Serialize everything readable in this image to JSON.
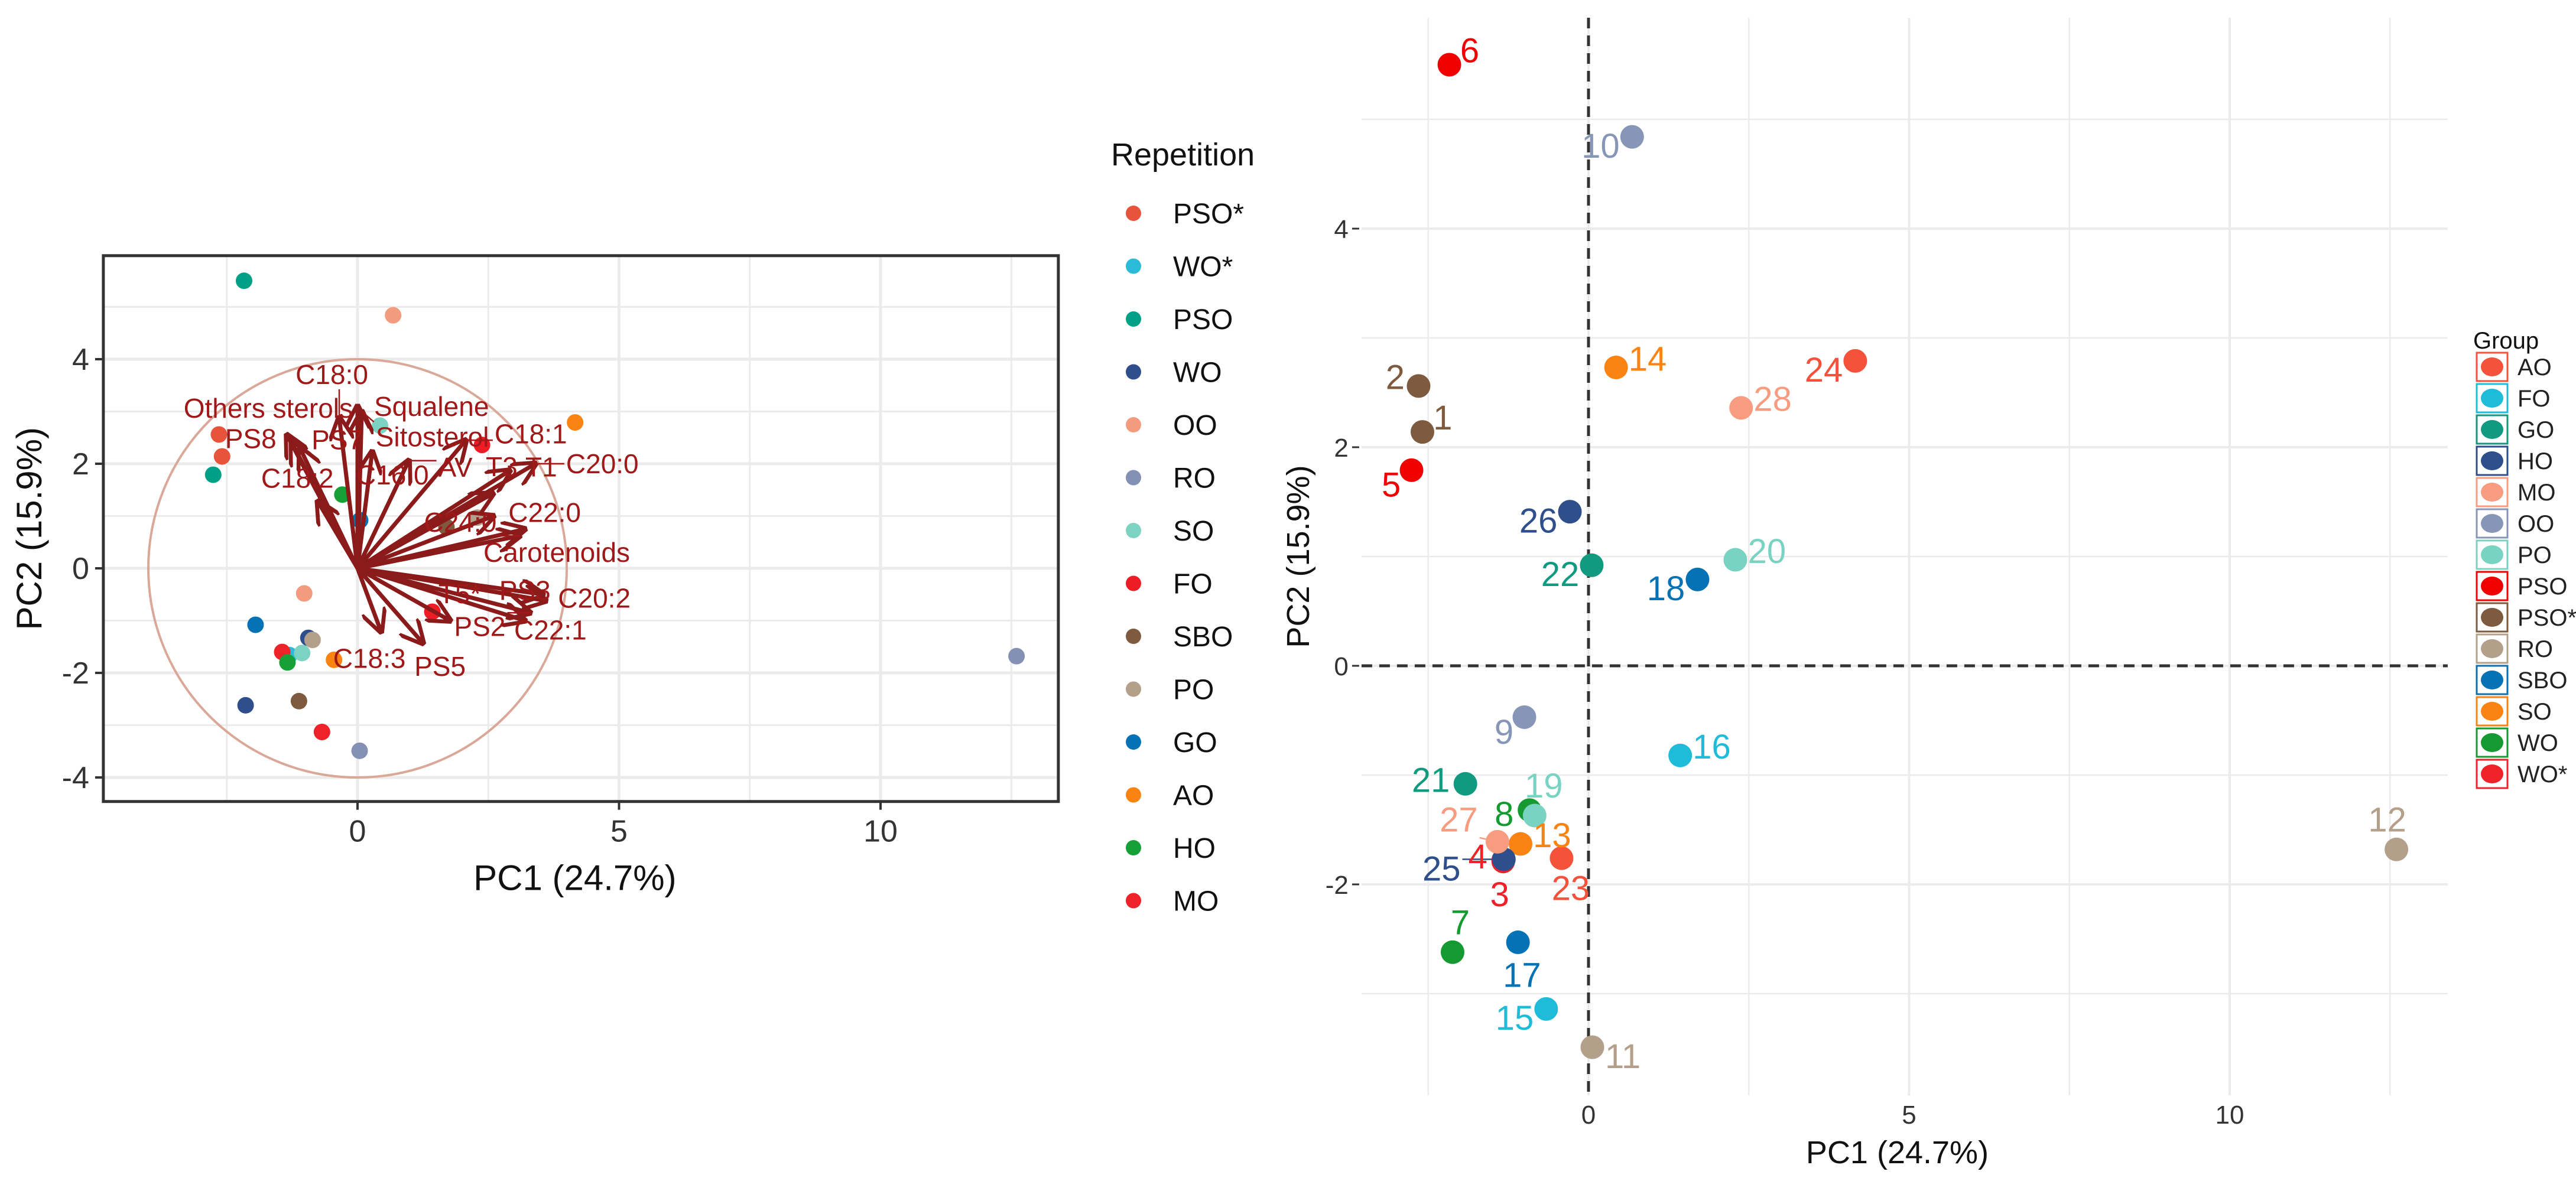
{
  "chart_data": [
    {
      "type": "scatter",
      "subtype": "biplot",
      "xlabel": "PC1 (24.7%)",
      "ylabel": "PC2 (15.9%)",
      "xlim": [
        -4.86,
        13.4
      ],
      "ylim": [
        -4.46,
        5.98
      ],
      "xticks": [
        0,
        5,
        10
      ],
      "yticks": [
        -4,
        -2,
        0,
        2,
        4
      ],
      "grid": true,
      "correlation_circle_radius": 4,
      "legend": {
        "title": "Repetition",
        "position": "right",
        "items": [
          {
            "label": "PSO*",
            "color": "#E8533B"
          },
          {
            "label": "WO*",
            "color": "#2BBBD8"
          },
          {
            "label": "PSO",
            "color": "#00A087"
          },
          {
            "label": "WO",
            "color": "#2E4E8C"
          },
          {
            "label": "OO",
            "color": "#F39B7F"
          },
          {
            "label": "RO",
            "color": "#8491B4"
          },
          {
            "label": "SO",
            "color": "#7DD3C2"
          },
          {
            "label": "FO",
            "color": "#EE1C25"
          },
          {
            "label": "SBO",
            "color": "#7E5A3F"
          },
          {
            "label": "PO",
            "color": "#B4A08A"
          },
          {
            "label": "GO",
            "color": "#0572B6"
          },
          {
            "label": "AO",
            "color": "#FB8311"
          },
          {
            "label": "HO",
            "color": "#16A035"
          },
          {
            "label": "MO",
            "color": "#EE2228"
          }
        ]
      },
      "points": [
        {
          "x": -2.17,
          "y": 5.5,
          "group": "PSO"
        },
        {
          "x": 0.68,
          "y": 4.84,
          "group": "OO"
        },
        {
          "x": -2.65,
          "y": 2.56,
          "group": "PSO*"
        },
        {
          "x": -2.59,
          "y": 2.14,
          "group": "PSO*"
        },
        {
          "x": -2.76,
          "y": 1.79,
          "group": "PSO"
        },
        {
          "x": -0.29,
          "y": 1.41,
          "group": "HO"
        },
        {
          "x": 0.05,
          "y": 0.92,
          "group": "GO"
        },
        {
          "x": 0.43,
          "y": 2.73,
          "group": "SO"
        },
        {
          "x": 2.38,
          "y": 2.36,
          "group": "FO"
        },
        {
          "x": 4.16,
          "y": 2.79,
          "group": "AO"
        },
        {
          "x": 1.7,
          "y": 0.79,
          "group": "SBO"
        },
        {
          "x": 2.29,
          "y": 0.97,
          "group": "PO"
        },
        {
          "x": -1.02,
          "y": -0.48,
          "group": "OO"
        },
        {
          "x": -1.95,
          "y": -1.08,
          "group": "GO"
        },
        {
          "x": -0.94,
          "y": -1.33,
          "group": "WO"
        },
        {
          "x": -0.86,
          "y": -1.37,
          "group": "PO"
        },
        {
          "x": -1.3,
          "y": -1.66,
          "group": "WO*"
        },
        {
          "x": -1.44,
          "y": -1.6,
          "group": "MO"
        },
        {
          "x": -1.06,
          "y": -1.62,
          "group": "SO"
        },
        {
          "x": -1.34,
          "y": -1.8,
          "group": "HO"
        },
        {
          "x": -0.45,
          "y": -1.75,
          "group": "AO"
        },
        {
          "x": 1.43,
          "y": -0.83,
          "group": "FO"
        },
        {
          "x": -2.14,
          "y": -2.62,
          "group": "WO"
        },
        {
          "x": -1.12,
          "y": -2.54,
          "group": "SBO"
        },
        {
          "x": -0.68,
          "y": -3.13,
          "group": "MO"
        },
        {
          "x": 0.04,
          "y": -3.49,
          "group": "RO"
        },
        {
          "x": 12.6,
          "y": -1.68,
          "group": "RO"
        }
      ],
      "loadings": [
        {
          "label": "Others sterols",
          "x": -1.35,
          "y": 2.55
        },
        {
          "label": "PS8",
          "x": -1.26,
          "y": 2.41
        },
        {
          "label": "PS7",
          "x": -1.1,
          "y": 2.3
        },
        {
          "label": "C18:2",
          "x": -0.76,
          "y": 1.28
        },
        {
          "label": "C18:0",
          "x": -0.35,
          "y": 2.88
        },
        {
          "label": "Squalene",
          "x": 0.0,
          "y": 3.1
        },
        {
          "label": "Sitosterol",
          "x": 0.08,
          "y": 3.0
        },
        {
          "label": "C16:0",
          "x": 0.28,
          "y": 2.23
        },
        {
          "label": "AV",
          "x": 0.98,
          "y": 2.06
        },
        {
          "label": "C18:1",
          "x": 2.07,
          "y": 2.45
        },
        {
          "label": "T1",
          "x": 2.91,
          "y": 1.87
        },
        {
          "label": "T3",
          "x": 2.59,
          "y": 1.43
        },
        {
          "label": "C22:0",
          "x": 2.6,
          "y": 1.0
        },
        {
          "label": "Carotenoids",
          "x": 3.2,
          "y": 0.75
        },
        {
          "label": "C24:0",
          "x": 3.1,
          "y": 0.62
        },
        {
          "label": "C20:0",
          "x": 3.4,
          "y": 2.0
        },
        {
          "label": "C20:2",
          "x": 3.55,
          "y": -0.5
        },
        {
          "label": "C22:1",
          "x": 3.6,
          "y": -0.62
        },
        {
          "label": "PS3",
          "x": 3.2,
          "y": -1.0
        },
        {
          "label": "PS2",
          "x": 3.3,
          "y": -0.85
        },
        {
          "label": "T5*",
          "x": 1.77,
          "y": -1.0
        },
        {
          "label": "PS5",
          "x": 1.25,
          "y": -1.43
        },
        {
          "label": "C18:3",
          "x": 0.45,
          "y": -1.21
        }
      ]
    },
    {
      "type": "scatter",
      "xlabel": "PC1 (24.7%)",
      "ylabel": "PC2 (15.9%)",
      "xlim": [
        -3.54,
        13.4
      ],
      "ylim": [
        -3.93,
        5.93
      ],
      "xticks": [
        0,
        5,
        10
      ],
      "yticks": [
        -2,
        0,
        2,
        4
      ],
      "grid": true,
      "reference_lines": {
        "x": 0,
        "y": 0,
        "style": "dashed"
      },
      "legend": {
        "title": "Group",
        "position": "right",
        "items": [
          {
            "label": "AO",
            "color": "#F4523B"
          },
          {
            "label": "FO",
            "color": "#1FBCD9"
          },
          {
            "label": "GO",
            "color": "#119A7F"
          },
          {
            "label": "HO",
            "color": "#2E4E8C"
          },
          {
            "label": "MO",
            "color": "#F89C80"
          },
          {
            "label": "OO",
            "color": "#8795B6"
          },
          {
            "label": "PO",
            "color": "#79D3C2"
          },
          {
            "label": "PSO",
            "color": "#F00000"
          },
          {
            "label": "PSO*",
            "color": "#7E5A3F"
          },
          {
            "label": "RO",
            "color": "#B4A08A"
          },
          {
            "label": "SBO",
            "color": "#0572B6"
          },
          {
            "label": "SO",
            "color": "#FB8311"
          },
          {
            "label": "WO",
            "color": "#149A30"
          },
          {
            "label": "WO*",
            "color": "#EE2228"
          }
        ]
      },
      "points": [
        {
          "id": "1",
          "x": -2.59,
          "y": 2.14,
          "group": "PSO*"
        },
        {
          "id": "2",
          "x": -2.65,
          "y": 2.56,
          "group": "PSO*"
        },
        {
          "id": "3",
          "x": -1.33,
          "y": -1.79,
          "group": "WO*"
        },
        {
          "id": "4",
          "x": -1.33,
          "y": -1.78,
          "group": "WO*"
        },
        {
          "id": "5",
          "x": -2.76,
          "y": 1.79,
          "group": "PSO"
        },
        {
          "id": "6",
          "x": -2.17,
          "y": 5.5,
          "group": "PSO"
        },
        {
          "id": "7",
          "x": -2.12,
          "y": -2.62,
          "group": "WO"
        },
        {
          "id": "8",
          "x": -0.92,
          "y": -1.32,
          "group": "WO"
        },
        {
          "id": "9",
          "x": -1.0,
          "y": -0.47,
          "group": "OO"
        },
        {
          "id": "10",
          "x": 0.68,
          "y": 4.84,
          "group": "OO"
        },
        {
          "id": "11",
          "x": 0.06,
          "y": -3.49,
          "group": "RO"
        },
        {
          "id": "12",
          "x": 12.6,
          "y": -1.68,
          "group": "RO"
        },
        {
          "id": "13",
          "x": -1.06,
          "y": -1.63,
          "group": "SO"
        },
        {
          "id": "14",
          "x": 0.43,
          "y": 2.73,
          "group": "SO"
        },
        {
          "id": "15",
          "x": -0.66,
          "y": -3.14,
          "group": "FO"
        },
        {
          "id": "16",
          "x": 1.43,
          "y": -0.82,
          "group": "FO"
        },
        {
          "id": "17",
          "x": -1.1,
          "y": -2.53,
          "group": "SBO"
        },
        {
          "id": "18",
          "x": 1.7,
          "y": 0.79,
          "group": "SBO"
        },
        {
          "id": "19",
          "x": -0.84,
          "y": -1.37,
          "group": "PO"
        },
        {
          "id": "20",
          "x": 2.29,
          "y": 0.97,
          "group": "PO"
        },
        {
          "id": "21",
          "x": -1.92,
          "y": -1.08,
          "group": "GO"
        },
        {
          "id": "22",
          "x": 0.05,
          "y": 0.92,
          "group": "GO"
        },
        {
          "id": "23",
          "x": -0.42,
          "y": -1.76,
          "group": "AO"
        },
        {
          "id": "24",
          "x": 4.16,
          "y": 2.79,
          "group": "AO"
        },
        {
          "id": "25",
          "x": -1.32,
          "y": -1.77,
          "group": "HO"
        },
        {
          "id": "26",
          "x": -0.29,
          "y": 1.41,
          "group": "HO"
        },
        {
          "id": "27",
          "x": -1.42,
          "y": -1.61,
          "group": "MO"
        },
        {
          "id": "28",
          "x": 2.38,
          "y": 2.36,
          "group": "MO"
        }
      ]
    }
  ]
}
